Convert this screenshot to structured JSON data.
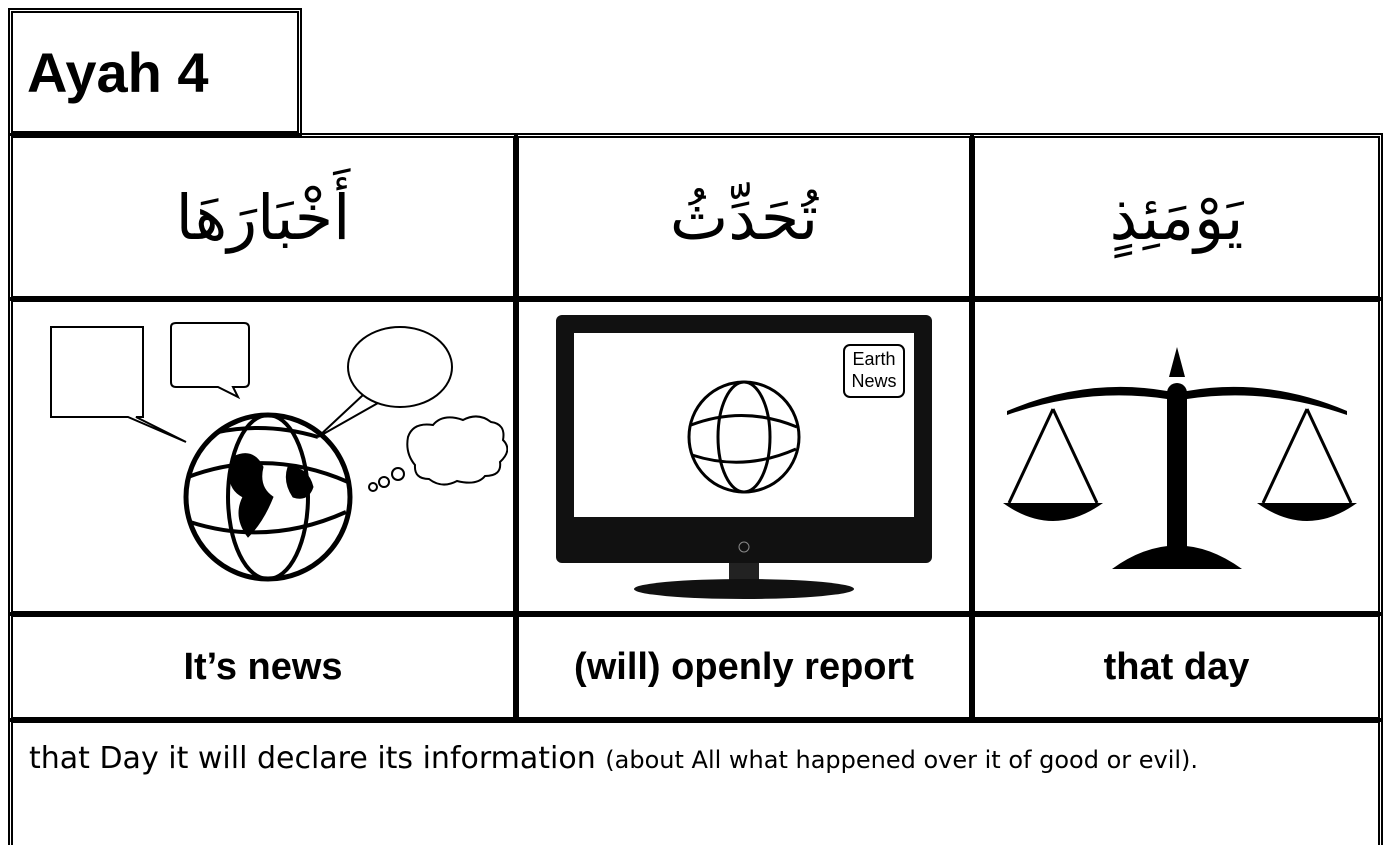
{
  "header": {
    "title": "Ayah 4"
  },
  "table": {
    "columns": [
      {
        "arabic": "أَخْبَارَهَا",
        "english": "It’s news"
      },
      {
        "arabic": "تُحَدِّثُ",
        "english": "(will) openly report",
        "image_text": [
          "Earth",
          "News"
        ]
      },
      {
        "arabic": "يَوْمَئِذٍ",
        "english": "that day"
      }
    ],
    "translation": {
      "main": "that Day it will declare its information",
      "note": "(about All what happened over it of good or evil)."
    }
  }
}
